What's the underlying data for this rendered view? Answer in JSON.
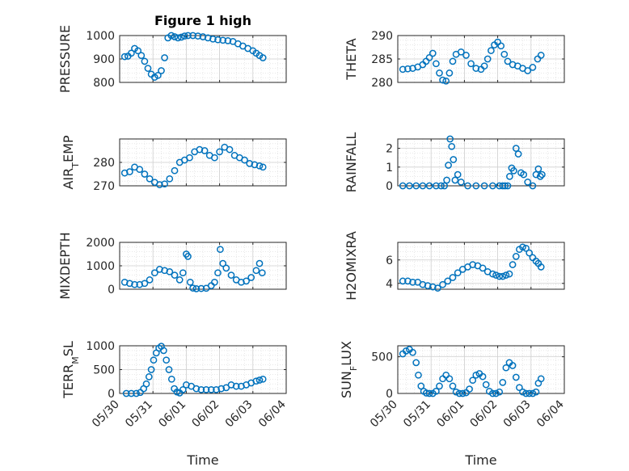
{
  "figure_title": "Figure 1 high",
  "x_axis_title": "Time",
  "x_tick_labels": [
    "05/30",
    "05/31",
    "06/01",
    "06/02",
    "06/03",
    "06/04"
  ],
  "marker_color": "#0072BD",
  "chart_data": [
    {
      "type": "scatter",
      "name": "PRESSURE",
      "ylabel": "PRESSURE",
      "ylim": [
        800,
        1000
      ],
      "yticks": [
        "800",
        "900",
        "1000"
      ],
      "xlim": [
        0,
        5
      ],
      "x": [
        0.15,
        0.25,
        0.35,
        0.45,
        0.55,
        0.65,
        0.75,
        0.85,
        0.95,
        1.05,
        1.15,
        1.25,
        1.35,
        1.45,
        1.55,
        1.65,
        1.75,
        1.85,
        1.95,
        2.05,
        2.2,
        2.35,
        2.5,
        2.65,
        2.8,
        2.95,
        3.1,
        3.25,
        3.4,
        3.55,
        3.7,
        3.85,
        4.0,
        4.1,
        4.2,
        4.3
      ],
      "y": [
        910,
        912,
        925,
        945,
        935,
        915,
        890,
        860,
        835,
        822,
        830,
        850,
        905,
        990,
        1000,
        995,
        990,
        993,
        998,
        1000,
        1000,
        998,
        995,
        990,
        985,
        982,
        980,
        978,
        975,
        965,
        955,
        945,
        935,
        925,
        915,
        905
      ]
    },
    {
      "type": "scatter",
      "name": "THETA",
      "ylabel": "THETA",
      "ylim": [
        280,
        290
      ],
      "yticks": [
        "280",
        "285",
        "290"
      ],
      "xlim": [
        0,
        5
      ],
      "x": [
        0.15,
        0.3,
        0.45,
        0.6,
        0.75,
        0.85,
        0.95,
        1.05,
        1.15,
        1.25,
        1.35,
        1.45,
        1.55,
        1.65,
        1.75,
        1.9,
        2.05,
        2.2,
        2.35,
        2.5,
        2.6,
        2.7,
        2.8,
        2.9,
        3.0,
        3.1,
        3.2,
        3.3,
        3.45,
        3.6,
        3.75,
        3.9,
        4.05,
        4.2,
        4.3
      ],
      "y": [
        282.8,
        282.9,
        283.0,
        283.3,
        283.8,
        284.5,
        285.3,
        286.2,
        284.0,
        282.0,
        280.5,
        280.3,
        282.0,
        284.5,
        286.0,
        286.5,
        285.8,
        284.0,
        283.0,
        282.8,
        283.5,
        285.0,
        286.8,
        288.0,
        288.6,
        287.8,
        286.0,
        284.5,
        283.8,
        283.5,
        283.0,
        282.5,
        283.2,
        285.0,
        285.8
      ]
    },
    {
      "type": "scatter",
      "name": "AIR_TEMP",
      "ylabel": "AIR",
      "ylabel_sub": "T",
      "ylabel_rest": "EMP",
      "ylim": [
        270,
        290
      ],
      "yticks": [
        "270",
        "280"
      ],
      "xlim": [
        0,
        5
      ],
      "x": [
        0.15,
        0.3,
        0.45,
        0.6,
        0.75,
        0.9,
        1.05,
        1.2,
        1.35,
        1.5,
        1.65,
        1.8,
        1.95,
        2.1,
        2.25,
        2.4,
        2.55,
        2.7,
        2.85,
        3.0,
        3.15,
        3.3,
        3.45,
        3.6,
        3.75,
        3.9,
        4.05,
        4.2,
        4.3
      ],
      "y": [
        275.5,
        276.0,
        278.0,
        277.0,
        275.0,
        273.0,
        271.5,
        270.5,
        270.8,
        273.0,
        276.5,
        280.0,
        281.0,
        282.0,
        284.5,
        285.5,
        285.0,
        283.0,
        282.0,
        284.5,
        286.5,
        285.5,
        283.0,
        282.0,
        281.0,
        279.5,
        279.0,
        278.5,
        278.0
      ]
    },
    {
      "type": "scatter",
      "name": "RAINFALL",
      "ylabel": "RAINFALL",
      "ylim": [
        0,
        2.5
      ],
      "yticks": [
        "0",
        "1",
        "2"
      ],
      "xlim": [
        0,
        5
      ],
      "x": [
        0.15,
        0.35,
        0.55,
        0.75,
        0.95,
        1.15,
        1.3,
        1.4,
        1.47,
        1.52,
        1.57,
        1.62,
        1.67,
        1.72,
        1.8,
        1.9,
        2.1,
        2.35,
        2.6,
        2.85,
        3.05,
        3.15,
        3.22,
        3.3,
        3.36,
        3.42,
        3.48,
        3.55,
        3.62,
        3.7,
        3.78,
        3.9,
        4.05,
        4.15,
        4.22,
        4.28,
        4.33
      ],
      "y": [
        0,
        0,
        0,
        0,
        0,
        0,
        0,
        0,
        0.3,
        1.1,
        2.5,
        2.1,
        1.4,
        0.3,
        0.6,
        0.2,
        0,
        0,
        0,
        0,
        0,
        0,
        0,
        0,
        0.5,
        0.95,
        0.8,
        2.0,
        1.7,
        0.7,
        0.6,
        0.2,
        0,
        0.6,
        0.9,
        0.5,
        0.6
      ]
    },
    {
      "type": "scatter",
      "name": "MIXDEPTH",
      "ylabel": "MIXDEPTH",
      "ylim": [
        0,
        2000
      ],
      "yticks": [
        "0",
        "1000",
        "2000"
      ],
      "xlim": [
        0,
        5
      ],
      "x": [
        0.15,
        0.3,
        0.45,
        0.6,
        0.75,
        0.9,
        1.05,
        1.2,
        1.35,
        1.5,
        1.65,
        1.8,
        1.9,
        2.0,
        2.05,
        2.12,
        2.2,
        2.3,
        2.45,
        2.6,
        2.75,
        2.85,
        2.95,
        3.02,
        3.1,
        3.2,
        3.35,
        3.5,
        3.65,
        3.8,
        3.95,
        4.1,
        4.2,
        4.28
      ],
      "y": [
        300,
        250,
        200,
        200,
        250,
        400,
        700,
        850,
        800,
        750,
        600,
        400,
        700,
        1500,
        1400,
        300,
        50,
        20,
        30,
        40,
        150,
        300,
        700,
        1700,
        1100,
        900,
        600,
        400,
        300,
        350,
        500,
        800,
        1100,
        700
      ]
    },
    {
      "type": "scatter",
      "name": "H2OMIXRA",
      "ylabel": "H2OMIXRA",
      "ylim": [
        3.5,
        7.5
      ],
      "yticks": [
        "4",
        "6"
      ],
      "xlim": [
        0,
        5
      ],
      "x": [
        0.15,
        0.3,
        0.45,
        0.6,
        0.75,
        0.9,
        1.05,
        1.2,
        1.35,
        1.5,
        1.65,
        1.8,
        1.95,
        2.1,
        2.25,
        2.4,
        2.55,
        2.7,
        2.85,
        2.95,
        3.05,
        3.15,
        3.25,
        3.35,
        3.45,
        3.55,
        3.65,
        3.75,
        3.85,
        3.95,
        4.05,
        4.15,
        4.22,
        4.3
      ],
      "y": [
        4.2,
        4.2,
        4.1,
        4.1,
        3.9,
        3.8,
        3.7,
        3.6,
        3.9,
        4.2,
        4.5,
        4.9,
        5.2,
        5.4,
        5.6,
        5.5,
        5.3,
        5.0,
        4.8,
        4.7,
        4.6,
        4.6,
        4.7,
        4.8,
        5.6,
        6.3,
        6.9,
        7.1,
        7.0,
        6.6,
        6.2,
        5.9,
        5.7,
        5.4
      ]
    },
    {
      "type": "scatter",
      "name": "TERR_MSL",
      "ylabel": "TERR",
      "ylabel_sub": "M",
      "ylabel_rest": "SL",
      "ylim": [
        0,
        1000
      ],
      "yticks": [
        "0",
        "500",
        "1000"
      ],
      "xlim": [
        0,
        5
      ],
      "x": [
        0.2,
        0.35,
        0.5,
        0.62,
        0.72,
        0.8,
        0.88,
        0.95,
        1.02,
        1.1,
        1.18,
        1.25,
        1.32,
        1.4,
        1.48,
        1.56,
        1.64,
        1.72,
        1.8,
        1.9,
        2.0,
        2.15,
        2.3,
        2.45,
        2.6,
        2.75,
        2.9,
        3.05,
        3.2,
        3.35,
        3.5,
        3.65,
        3.8,
        3.95,
        4.1,
        4.2,
        4.3
      ],
      "y": [
        0,
        0,
        0,
        20,
        100,
        200,
        350,
        500,
        700,
        850,
        950,
        990,
        900,
        700,
        500,
        300,
        100,
        30,
        10,
        80,
        180,
        150,
        100,
        80,
        80,
        80,
        80,
        100,
        120,
        180,
        150,
        150,
        180,
        220,
        260,
        280,
        300
      ]
    },
    {
      "type": "scatter",
      "name": "SUN_FLUX",
      "ylabel": "SUN",
      "ylabel_sub": "F",
      "ylabel_rest": "LUX",
      "ylim": [
        0,
        650
      ],
      "yticks": [
        "0",
        "500"
      ],
      "xlim": [
        0,
        5
      ],
      "x": [
        0.15,
        0.25,
        0.35,
        0.45,
        0.55,
        0.62,
        0.7,
        0.78,
        0.86,
        0.95,
        1.05,
        1.15,
        1.25,
        1.35,
        1.45,
        1.55,
        1.65,
        1.75,
        1.85,
        1.95,
        2.05,
        2.15,
        2.25,
        2.35,
        2.45,
        2.55,
        2.65,
        2.75,
        2.85,
        2.95,
        3.05,
        3.15,
        3.25,
        3.35,
        3.45,
        3.55,
        3.65,
        3.75,
        3.85,
        3.95,
        4.05,
        4.15,
        4.22,
        4.3
      ],
      "y": [
        540,
        580,
        600,
        560,
        420,
        250,
        100,
        30,
        5,
        0,
        0,
        30,
        100,
        200,
        250,
        200,
        100,
        20,
        0,
        0,
        10,
        60,
        180,
        250,
        270,
        230,
        120,
        30,
        0,
        0,
        20,
        150,
        350,
        420,
        380,
        220,
        80,
        20,
        0,
        0,
        0,
        20,
        140,
        200
      ]
    }
  ]
}
